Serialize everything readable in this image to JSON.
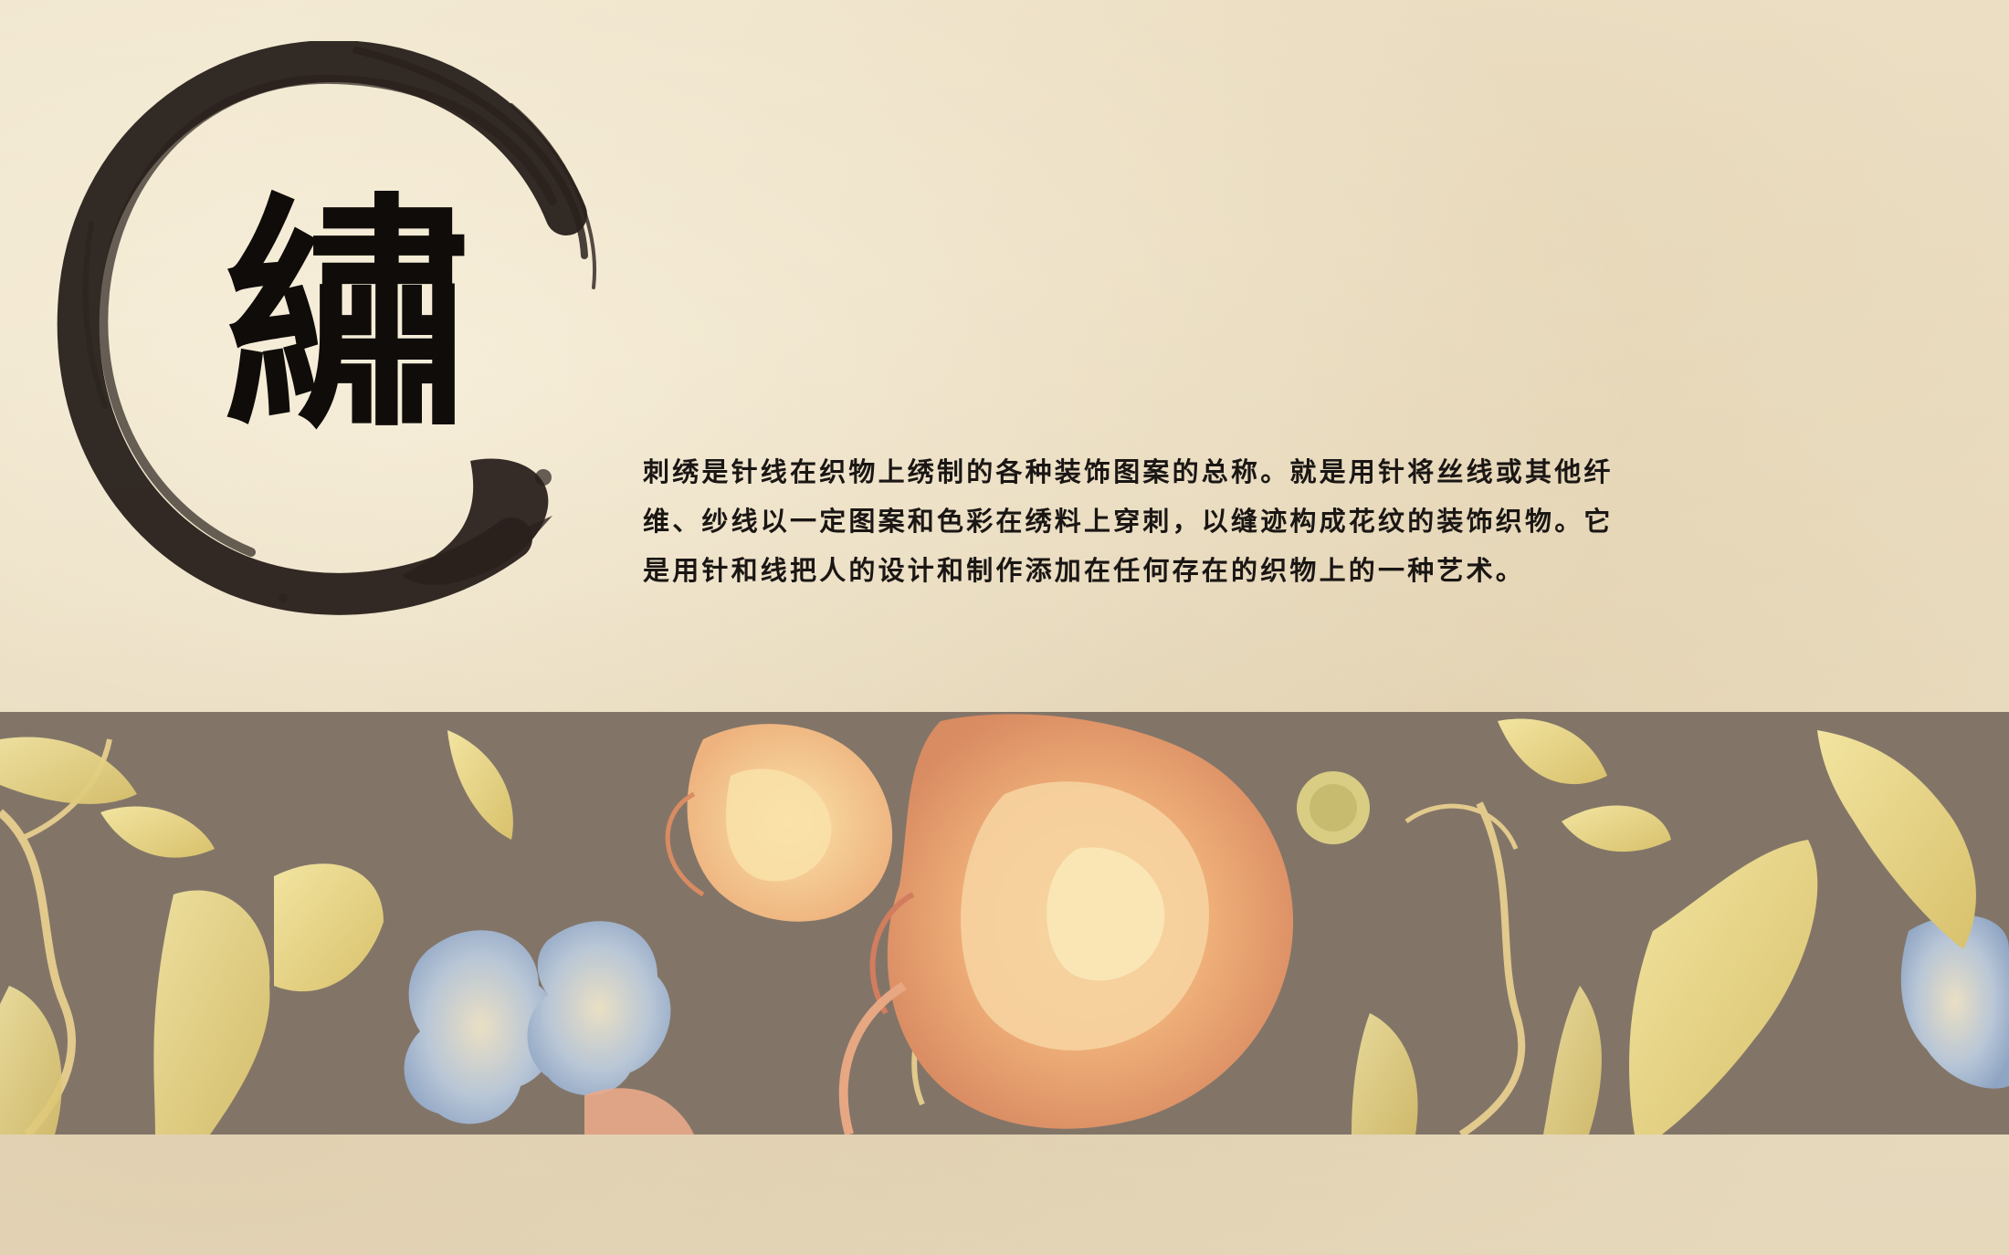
{
  "heading": {
    "character": "繡"
  },
  "intro": {
    "text": "刺绣是针线在织物上绣制的各种装饰图案的总称。就是用针将丝线或其他纤\n维、纱线以一定图案和色彩在绣料上穿刺，以缝迹构成花纹的装饰织物。它\n是用针和线把人的设计和制作添加在任何存在的织物上的一种艺术。"
  },
  "decor": {
    "ink_circle": "ink-brush-circle",
    "floral_band": "floral-embroidery-band"
  },
  "colors": {
    "paper": "#ece0c6",
    "ink": "#2a211d",
    "band": "#85786b",
    "text": "#1a1614"
  }
}
